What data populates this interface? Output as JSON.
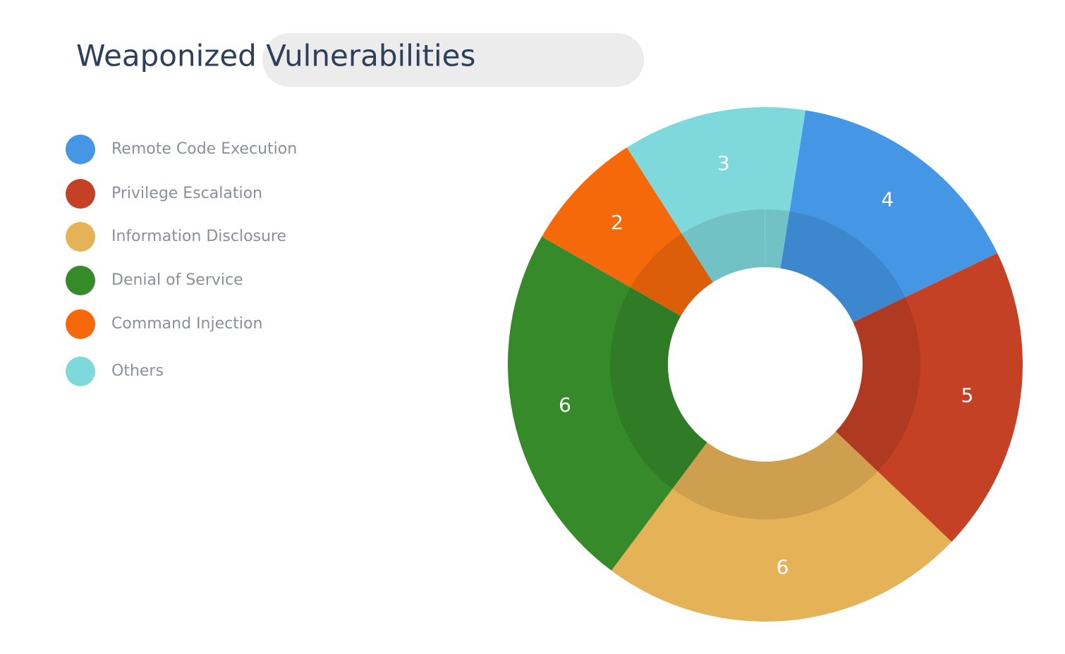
{
  "chart_data": {
    "type": "donut",
    "title": "Weaponized Vulnerabilities",
    "categories": [
      "Remote Code Execution",
      "Privilege Escalation",
      "Information Disclosure",
      "Denial of Service",
      "Command Injection",
      "Others"
    ],
    "values": [
      4,
      5,
      6,
      6,
      2,
      3
    ],
    "colors": [
      "#4597e6",
      "#c44125",
      "#e6b257",
      "#368a2a",
      "#f5690a",
      "#7fd9dc"
    ],
    "legend": "left"
  }
}
